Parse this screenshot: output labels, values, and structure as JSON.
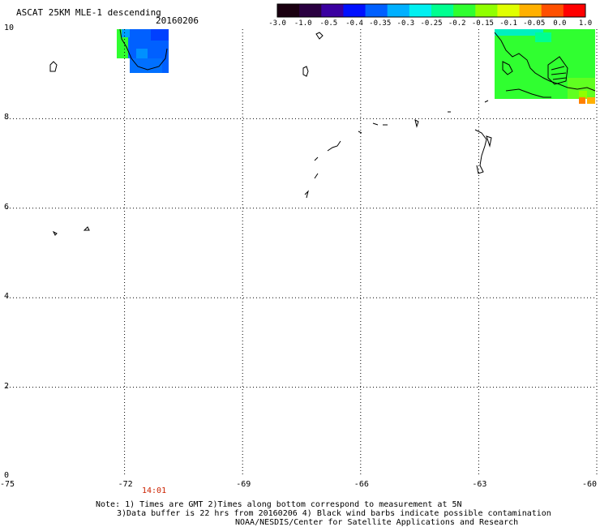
{
  "header": {
    "title": "ASCAT 25KM MLE-1 descending",
    "date": "20160206"
  },
  "colorbar": {
    "labels": [
      "-3.0",
      "-1.0",
      "-0.5",
      "-0.4",
      "-0.35",
      "-0.3",
      "-0.25",
      "-0.2",
      "-0.15",
      "-0.1",
      "-0.05",
      "0.0",
      "1.0"
    ],
    "colors": [
      "#1a0010",
      "#2a0040",
      "#3a00a0",
      "#0010ff",
      "#0060ff",
      "#00b0ff",
      "#00f0f0",
      "#00ff90",
      "#30ff30",
      "#90ff00",
      "#e0ff00",
      "#ffb000",
      "#ff5000",
      "#ff0000"
    ]
  },
  "axes": {
    "x_ticks": [
      "-75",
      "-72",
      "-69",
      "-66",
      "-63",
      "-60"
    ],
    "y_ticks": [
      "10",
      "8",
      "6",
      "4",
      "2",
      "0"
    ],
    "x_range": [
      -75,
      -60
    ],
    "y_range": [
      0,
      10
    ]
  },
  "time_label": {
    "value": "14:01",
    "color": "#cc2200"
  },
  "notes": {
    "line1": "Note: 1) Times are GMT 2)Times along bottom correspond to measurement at 5N",
    "line2": "3)Data buffer is 22 hrs from 20160206 4) Black wind barbs indicate possible contamination",
    "line3": "NOAA/NESDIS/Center for Satellite Applications and Research"
  }
}
